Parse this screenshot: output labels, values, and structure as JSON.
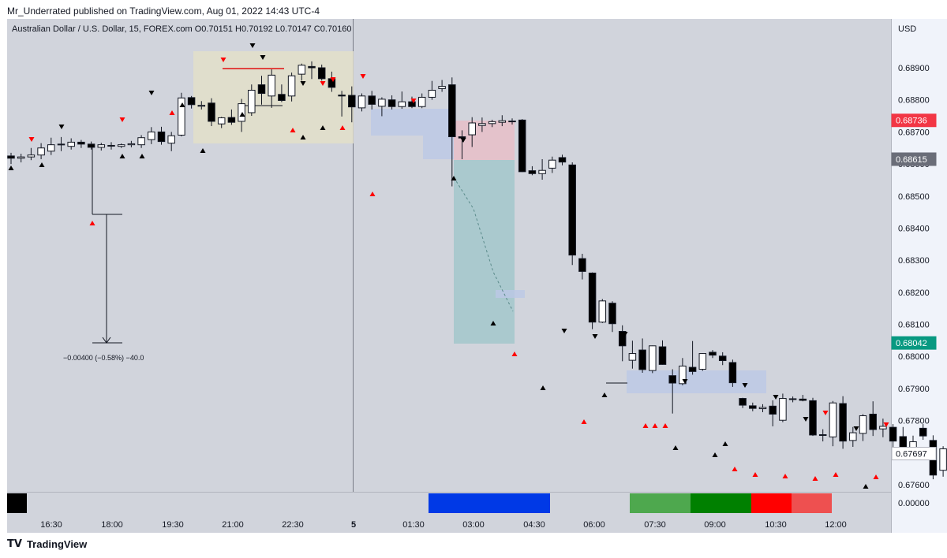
{
  "header": {
    "published": "Mr_Underrated published on TradingView.com, Aug 01, 2022 14:43 UTC-4"
  },
  "footer": {
    "logo_glyph": "TV",
    "brand": "TradingView"
  },
  "colors": {
    "background": "#d1d4dc",
    "price_panel": "#f0f3fa",
    "buy_fill": "#ffffff",
    "sell_fill": "#000000",
    "signal_up": "#000000",
    "signal_down": "#f00000"
  },
  "chart_data": {
    "type": "candlestick",
    "symbol": "Australian Dollar / U.S. Dollar, 15, FOREX.com",
    "ohlc_label": {
      "o": "O0.70151",
      "h": "H0.70192",
      "l": "L0.70147",
      "c": "C0.70160"
    },
    "currency": "USD",
    "y_ticks": [
      "0.68900",
      "0.68800",
      "0.68700",
      "0.68600",
      "0.68500",
      "0.68400",
      "0.68300",
      "0.68200",
      "0.68100",
      "0.68000",
      "0.67900",
      "0.67800",
      "0.67700",
      "0.67600"
    ],
    "x_ticks": [
      "16:30",
      "18:00",
      "19:30",
      "21:00",
      "22:30",
      "5",
      "01:30",
      "03:00",
      "04:30",
      "06:00",
      "07:30",
      "09:00",
      "10:30",
      "12:00"
    ],
    "price_labels": [
      {
        "text": "0.68736",
        "color": "#f23645"
      },
      {
        "text": "0.68615",
        "color": "#6a6d78"
      },
      {
        "text": "0.68042",
        "color": "#089981"
      },
      {
        "text": "0.67697",
        "color": "#ffffff",
        "text_color": "#131722"
      }
    ],
    "ylim": [
      0.6756,
      0.6899
    ],
    "indicator_value": "0.00000",
    "measure_text": "−0.00400 (−0.58%) −40.0",
    "candles": [
      [
        0.68625,
        0.68635,
        0.686,
        0.68618
      ],
      [
        0.68618,
        0.68632,
        0.68605,
        0.68622
      ],
      [
        0.68622,
        0.6865,
        0.68612,
        0.68628
      ],
      [
        0.68628,
        0.68665,
        0.68615,
        0.6865
      ],
      [
        0.6864,
        0.68682,
        0.68628,
        0.6866
      ],
      [
        0.6866,
        0.68684,
        0.6864,
        0.68662
      ],
      [
        0.68655,
        0.6868,
        0.68645,
        0.68668
      ],
      [
        0.68668,
        0.68675,
        0.6865,
        0.68662
      ],
      [
        0.68662,
        0.6867,
        0.68645,
        0.68652
      ],
      [
        0.68652,
        0.68666,
        0.68642,
        0.6866
      ],
      [
        0.68658,
        0.68668,
        0.68645,
        0.68658
      ],
      [
        0.68655,
        0.68664,
        0.6865,
        0.6866
      ],
      [
        0.6866,
        0.68672,
        0.68652,
        0.68663
      ],
      [
        0.6866,
        0.6869,
        0.6865,
        0.68682
      ],
      [
        0.68676,
        0.68715,
        0.68662,
        0.687
      ],
      [
        0.687,
        0.68716,
        0.6866,
        0.6867
      ],
      [
        0.68665,
        0.687,
        0.6864,
        0.68688
      ],
      [
        0.6869,
        0.68822,
        0.68686,
        0.68806
      ],
      [
        0.68807,
        0.68812,
        0.68773,
        0.68785
      ],
      [
        0.6878,
        0.68796,
        0.6877,
        0.68783
      ],
      [
        0.6879,
        0.68805,
        0.68718,
        0.68733
      ],
      [
        0.68725,
        0.68747,
        0.68712,
        0.68744
      ],
      [
        0.68745,
        0.6877,
        0.68722,
        0.6873
      ],
      [
        0.68733,
        0.68803,
        0.687,
        0.68788
      ],
      [
        0.6876,
        0.68848,
        0.6875,
        0.6883
      ],
      [
        0.68847,
        0.68875,
        0.68785,
        0.6882
      ],
      [
        0.68812,
        0.68895,
        0.68775,
        0.68877
      ],
      [
        0.68817,
        0.68848,
        0.68793,
        0.68798
      ],
      [
        0.68812,
        0.68885,
        0.68795,
        0.68875
      ],
      [
        0.6888,
        0.68913,
        0.6886,
        0.68908
      ],
      [
        0.68904,
        0.6892,
        0.68865,
        0.689
      ],
      [
        0.689,
        0.6891,
        0.6886,
        0.68866
      ],
      [
        0.68866,
        0.68888,
        0.68825,
        0.68839
      ],
      [
        0.68815,
        0.68828,
        0.68748,
        0.68812
      ],
      [
        0.68814,
        0.68842,
        0.6873,
        0.68778
      ],
      [
        0.68775,
        0.6882,
        0.68764,
        0.68812
      ],
      [
        0.68812,
        0.68828,
        0.6877,
        0.68786
      ],
      [
        0.6878,
        0.68808,
        0.68749,
        0.68802
      ],
      [
        0.688,
        0.68814,
        0.6877,
        0.68779
      ],
      [
        0.68779,
        0.68826,
        0.68772,
        0.68794
      ],
      [
        0.68794,
        0.6881,
        0.68774,
        0.68779
      ],
      [
        0.68779,
        0.6882,
        0.68774,
        0.68808
      ],
      [
        0.68808,
        0.68859,
        0.688,
        0.6883
      ],
      [
        0.68835,
        0.68862,
        0.68825,
        0.68842
      ],
      [
        0.68847,
        0.6887,
        0.6853,
        0.68685
      ],
      [
        0.68685,
        0.68705,
        0.68615,
        0.68681
      ],
      [
        0.68691,
        0.68746,
        0.68653,
        0.68728
      ],
      [
        0.6872,
        0.68745,
        0.687,
        0.68726
      ],
      [
        0.68726,
        0.68738,
        0.68715,
        0.68732
      ],
      [
        0.6873,
        0.68752,
        0.68718,
        0.68735
      ],
      [
        0.68734,
        0.68742,
        0.68723,
        0.68732
      ],
      [
        0.68737,
        0.6874,
        0.68575,
        0.68576
      ],
      [
        0.68579,
        0.68593,
        0.68565,
        0.6857
      ],
      [
        0.6857,
        0.68615,
        0.68551,
        0.6858
      ],
      [
        0.68587,
        0.68623,
        0.68572,
        0.68612
      ],
      [
        0.6862,
        0.68629,
        0.68596,
        0.68606
      ],
      [
        0.68597,
        0.68605,
        0.68285,
        0.68316
      ],
      [
        0.68305,
        0.6832,
        0.6824,
        0.68265
      ],
      [
        0.6826,
        0.68262,
        0.68085,
        0.68107
      ],
      [
        0.68107,
        0.68179,
        0.68104,
        0.68173
      ],
      [
        0.68166,
        0.68172,
        0.68076,
        0.68102
      ],
      [
        0.68078,
        0.68097,
        0.67985,
        0.68033
      ],
      [
        0.67988,
        0.68049,
        0.67962,
        0.68009
      ],
      [
        0.6802,
        0.68056,
        0.67949,
        0.67959
      ],
      [
        0.67956,
        0.68034,
        0.67948,
        0.68033
      ],
      [
        0.6803,
        0.6805,
        0.67974,
        0.67975
      ],
      [
        0.6794,
        0.6796,
        0.67822,
        0.67917
      ],
      [
        0.67915,
        0.67995,
        0.6791,
        0.6797
      ],
      [
        0.67966,
        0.68048,
        0.67943,
        0.67953
      ],
      [
        0.6796,
        0.6801,
        0.67955,
        0.68009
      ],
      [
        0.68013,
        0.6802,
        0.67995,
        0.68004
      ],
      [
        0.68001,
        0.68013,
        0.67973,
        0.67987
      ],
      [
        0.67981,
        0.6799,
        0.67905,
        0.67918
      ],
      [
        0.67869,
        0.67871,
        0.67839,
        0.67848
      ],
      [
        0.67846,
        0.67856,
        0.67829,
        0.67838
      ],
      [
        0.67837,
        0.67851,
        0.67826,
        0.67841
      ],
      [
        0.67845,
        0.67863,
        0.67782,
        0.6782
      ],
      [
        0.67801,
        0.67884,
        0.67795,
        0.67869
      ],
      [
        0.67868,
        0.67875,
        0.67857,
        0.67866
      ],
      [
        0.67867,
        0.6788,
        0.6786,
        0.67863
      ],
      [
        0.67862,
        0.67871,
        0.67752,
        0.67755
      ],
      [
        0.67756,
        0.67773,
        0.67735,
        0.67756
      ],
      [
        0.67749,
        0.67861,
        0.6772,
        0.67855
      ],
      [
        0.67853,
        0.67876,
        0.67712,
        0.67736
      ],
      [
        0.67738,
        0.6778,
        0.67718,
        0.67762
      ],
      [
        0.6776,
        0.6782,
        0.67736,
        0.67815
      ],
      [
        0.6782,
        0.6786,
        0.67752,
        0.67772
      ],
      [
        0.67774,
        0.67806,
        0.67748,
        0.67782
      ],
      [
        0.67779,
        0.67789,
        0.67693,
        0.67736
      ],
      [
        0.6775,
        0.6778,
        0.67703,
        0.67712
      ],
      [
        0.67712,
        0.67753,
        0.67692,
        0.67734
      ],
      [
        0.67776,
        0.67789,
        0.6774,
        0.67752
      ],
      [
        0.67738,
        0.67754,
        0.67617,
        0.6763
      ],
      [
        0.67645,
        0.6772,
        0.67625,
        0.67712
      ],
      [
        0.67713,
        0.67737,
        0.67702,
        0.67732
      ],
      [
        0.67726,
        0.67754,
        0.67614,
        0.6764
      ],
      [
        0.67644,
        0.6767,
        0.67626,
        0.67674
      ],
      [
        0.67674,
        0.67697,
        0.67647,
        0.67697
      ]
    ]
  }
}
